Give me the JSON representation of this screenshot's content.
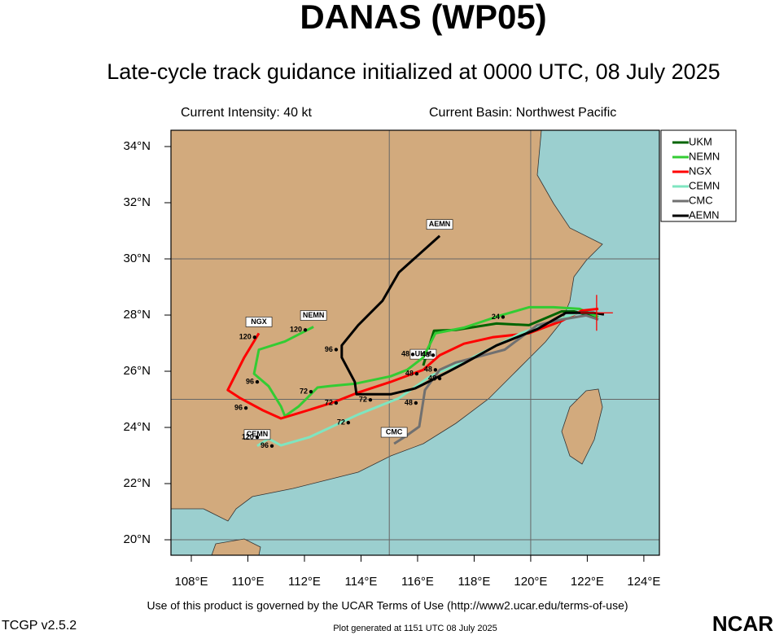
{
  "chart_data": {
    "type": "track",
    "title": "DANAS (WP05)",
    "subtitle": "Late-cycle track guidance initialized at 0000 UTC, 08 July 2025",
    "intensity": "Current Intensity: 40 kt",
    "basin": "Current Basin: Northwest Pacific",
    "footer": "Use of this product is governed by the UCAR Terms of Use (http://www2.ucar.edu/terms-of-use)",
    "version": "TCGP v2.5.2",
    "generated": "Plot generated at 1151 UTC   08 July 2025",
    "logo": "NCAR",
    "xlim": [
      107.28,
      124.55
    ],
    "ylim": [
      19.45,
      34.58
    ],
    "xticks": [
      {
        "value": 108,
        "label": "108°E"
      },
      {
        "value": 110,
        "label": "110°E"
      },
      {
        "value": 112,
        "label": "112°E"
      },
      {
        "value": 114,
        "label": "114°E"
      },
      {
        "value": 116,
        "label": "116°E"
      },
      {
        "value": 118,
        "label": "118°E"
      },
      {
        "value": 120,
        "label": "120°E"
      },
      {
        "value": 122,
        "label": "122°E"
      },
      {
        "value": 124,
        "label": "124°E"
      }
    ],
    "yticks": [
      {
        "value": 20,
        "label": "20°N"
      },
      {
        "value": 22,
        "label": "22°N"
      },
      {
        "value": 24,
        "label": "24°N"
      },
      {
        "value": 26,
        "label": "26°N"
      },
      {
        "value": 28,
        "label": "28°N"
      },
      {
        "value": 30,
        "label": "30°N"
      },
      {
        "value": 32,
        "label": "32°N"
      },
      {
        "value": 34,
        "label": "34°N"
      }
    ],
    "grid_lons": [
      115,
      120
    ],
    "grid_lats": [
      20,
      25,
      30
    ],
    "current_position": {
      "x": 122.33,
      "y": 28.08,
      "color": "#ff0000"
    },
    "legend": "upper right",
    "series": [
      {
        "name": "UKM",
        "color": "#006400",
        "x": [
          122.33,
          121.53,
          121.09,
          119.94,
          118.79,
          117.35,
          116.58,
          116.2
        ],
        "y": [
          27.93,
          28.13,
          28.13,
          27.64,
          27.7,
          27.47,
          27.44,
          26.2
        ]
      },
      {
        "name": "NEMN",
        "color": "#33cc33",
        "x": [
          122.39,
          121.73,
          120.81,
          119.94,
          118.94,
          117.64,
          116.63,
          116.2,
          115.63,
          115.05,
          113.81,
          112.89,
          112.46,
          112.03,
          111.8,
          111.31,
          111.17,
          110.73,
          110.22,
          110.39,
          111.31,
          112.32
        ],
        "y": [
          27.93,
          28.22,
          28.28,
          28.28,
          27.99,
          27.55,
          27.35,
          26.49,
          26.05,
          25.82,
          25.56,
          25.47,
          25.42,
          24.98,
          24.75,
          24.4,
          24.75,
          25.47,
          25.91,
          26.77,
          27.06,
          27.58
        ]
      },
      {
        "name": "NGX",
        "color": "#ff0000",
        "x": [
          122.39,
          121.81,
          121.09,
          119.94,
          118.65,
          117.64,
          116.78,
          116.2,
          115.05,
          113.9,
          113.04,
          112.12,
          111.17,
          110.53,
          109.73,
          109.29,
          109.87,
          110.39
        ],
        "y": [
          28.22,
          28.16,
          27.79,
          27.35,
          27.21,
          26.98,
          26.57,
          26.05,
          25.62,
          25.24,
          24.9,
          24.61,
          24.32,
          24.61,
          25.04,
          25.33,
          26.49,
          27.35
        ]
      },
      {
        "name": "CEMN",
        "color": "#7fe5c0",
        "x": [
          122.39,
          121.67,
          120.81,
          119.65,
          118.5,
          117.64,
          116.49,
          115.34,
          113.9,
          112.17,
          111.17,
          110.73,
          110.33
        ],
        "y": [
          28.08,
          28.08,
          27.79,
          27.35,
          26.77,
          26.34,
          25.85,
          25.04,
          24.46,
          23.65,
          23.36,
          23.6,
          23.34
        ]
      },
      {
        "name": "CMC",
        "color": "#707070",
        "x": [
          122.39,
          121.96,
          121.09,
          120.23,
          119.08,
          118.22,
          117.35,
          116.78,
          116.26,
          116.06,
          115.57,
          115.17
        ],
        "y": [
          27.84,
          27.99,
          27.84,
          27.64,
          26.77,
          26.54,
          26.31,
          26.05,
          25.33,
          24.03,
          23.68,
          23.42
        ]
      },
      {
        "name": "AEMN",
        "color": "#000000",
        "x": [
          122.59,
          122.24,
          121.24,
          120.23,
          118.79,
          117.64,
          117.06,
          116.49,
          115.91,
          115.05,
          113.84,
          113.78,
          113.32,
          113.32,
          113.9,
          114.76,
          115.34,
          116.78
        ],
        "y": [
          28.02,
          28.08,
          28.08,
          27.5,
          26.92,
          26.28,
          25.97,
          25.68,
          25.39,
          25.18,
          25.18,
          25.62,
          26.49,
          26.92,
          27.64,
          28.51,
          29.52,
          30.82
        ]
      }
    ],
    "hour_labels": [
      {
        "text": "120",
        "x": 110.24,
        "y": 27.21
      },
      {
        "text": "120",
        "x": 112.03,
        "y": 27.47
      },
      {
        "text": "96",
        "x": 113.12,
        "y": 26.77
      },
      {
        "text": "96",
        "x": 109.93,
        "y": 24.69
      },
      {
        "text": "96",
        "x": 110.33,
        "y": 25.62
      },
      {
        "text": "120",
        "x": 110.33,
        "y": 23.65
      },
      {
        "text": "96",
        "x": 110.85,
        "y": 23.34
      },
      {
        "text": "72",
        "x": 112.23,
        "y": 25.27
      },
      {
        "text": "72",
        "x": 113.12,
        "y": 24.87
      },
      {
        "text": "72",
        "x": 114.33,
        "y": 24.98
      },
      {
        "text": "72",
        "x": 113.55,
        "y": 24.17
      },
      {
        "text": "48",
        "x": 115.83,
        "y": 26.6
      },
      {
        "text": "48",
        "x": 116.55,
        "y": 26.57
      },
      {
        "text": "48",
        "x": 115.97,
        "y": 25.91
      },
      {
        "text": "48",
        "x": 116.63,
        "y": 26.05
      },
      {
        "text": "48",
        "x": 116.78,
        "y": 25.74
      },
      {
        "text": "48",
        "x": 115.94,
        "y": 24.87
      },
      {
        "text": "24",
        "x": 119.02,
        "y": 27.93
      }
    ]
  }
}
